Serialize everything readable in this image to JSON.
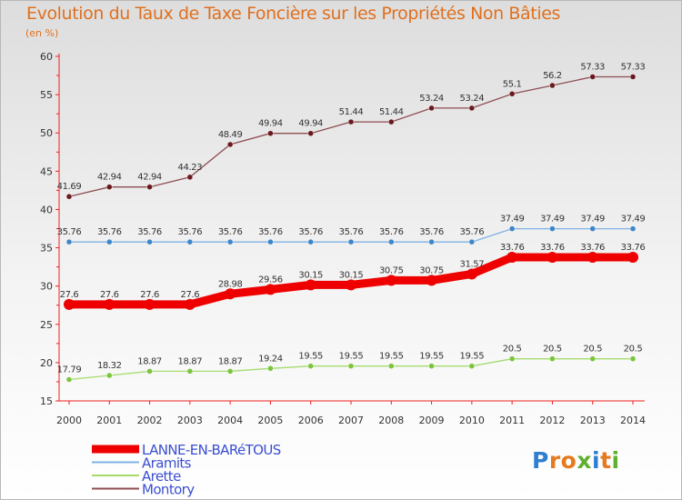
{
  "title": "Evolution du Taux de Taxe Foncière sur les Propriétés Non Bâties",
  "unit_label": "(en %)",
  "logo": {
    "letters": [
      "P",
      "r",
      "o",
      "x",
      "i",
      "t",
      "i"
    ],
    "colors": [
      "#2f7fd0",
      "#e57a1f",
      "#e57a1f",
      "#5fb030",
      "#2f7fd0",
      "#e57a1f",
      "#5fb030"
    ]
  },
  "chart_data": {
    "type": "line",
    "title": "Evolution du Taux de Taxe Foncière sur les Propriétés Non Bâties",
    "ylabel": "(en %)",
    "x": [
      "2000",
      "2001",
      "2002",
      "2003",
      "2004",
      "2005",
      "2006",
      "2007",
      "2008",
      "2009",
      "2010",
      "2011",
      "2012",
      "2013",
      "2014"
    ],
    "ylim": [
      15,
      60
    ],
    "yticks": [
      "15",
      "20",
      "25",
      "30",
      "35",
      "40",
      "45",
      "50",
      "55",
      "60"
    ],
    "grid": false,
    "legend_placement": "bottom-left",
    "series": [
      {
        "name": "LANNE-EN-BARéTOUS",
        "color": "#ee0000",
        "marker_color": "#ee0000",
        "emphasis": true,
        "values": [
          27.6,
          27.6,
          27.6,
          27.6,
          28.98,
          29.56,
          30.15,
          30.15,
          30.75,
          30.75,
          31.57,
          33.76,
          33.76,
          33.76,
          33.76
        ],
        "labels": [
          "27.6",
          "27.6",
          "27.6",
          "27.6",
          "28.98",
          "29.56",
          "30.15",
          "30.15",
          "30.75",
          "30.75",
          "31.57",
          "33.76",
          "33.76",
          "33.76",
          "33.76"
        ]
      },
      {
        "name": "Aramits",
        "color": "#7fb2e5",
        "marker_color": "#3d86c8",
        "emphasis": false,
        "values": [
          35.76,
          35.76,
          35.76,
          35.76,
          35.76,
          35.76,
          35.76,
          35.76,
          35.76,
          35.76,
          35.76,
          37.49,
          37.49,
          37.49,
          37.49
        ],
        "labels": [
          "35.76",
          "35.76",
          "35.76",
          "35.76",
          "35.76",
          "35.76",
          "35.76",
          "35.76",
          "35.76",
          "35.76",
          "35.76",
          "37.49",
          "37.49",
          "37.49",
          "37.49"
        ]
      },
      {
        "name": "Arette",
        "color": "#a6db6e",
        "marker_color": "#7cc43e",
        "emphasis": false,
        "values": [
          17.79,
          18.32,
          18.87,
          18.87,
          18.87,
          19.24,
          19.55,
          19.55,
          19.55,
          19.55,
          19.55,
          20.5,
          20.5,
          20.5,
          20.5
        ],
        "labels": [
          "17.79",
          "18.32",
          "18.87",
          "18.87",
          "18.87",
          "19.24",
          "19.55",
          "19.55",
          "19.55",
          "19.55",
          "19.55",
          "20.5",
          "20.5",
          "20.5",
          "20.5"
        ]
      },
      {
        "name": "Montory",
        "color": "#8e4e52",
        "marker_color": "#6a1a1e",
        "emphasis": false,
        "values": [
          41.69,
          42.94,
          42.94,
          44.23,
          48.49,
          49.94,
          49.94,
          51.44,
          51.44,
          53.24,
          53.24,
          55.1,
          56.2,
          57.33,
          57.33
        ],
        "labels": [
          "41.69",
          "42.94",
          "42.94",
          "44.23",
          "48.49",
          "49.94",
          "49.94",
          "51.44",
          "51.44",
          "53.24",
          "53.24",
          "55.1",
          "56.2",
          "57.33",
          "57.33"
        ]
      }
    ],
    "axis_color": "#ee2020"
  }
}
